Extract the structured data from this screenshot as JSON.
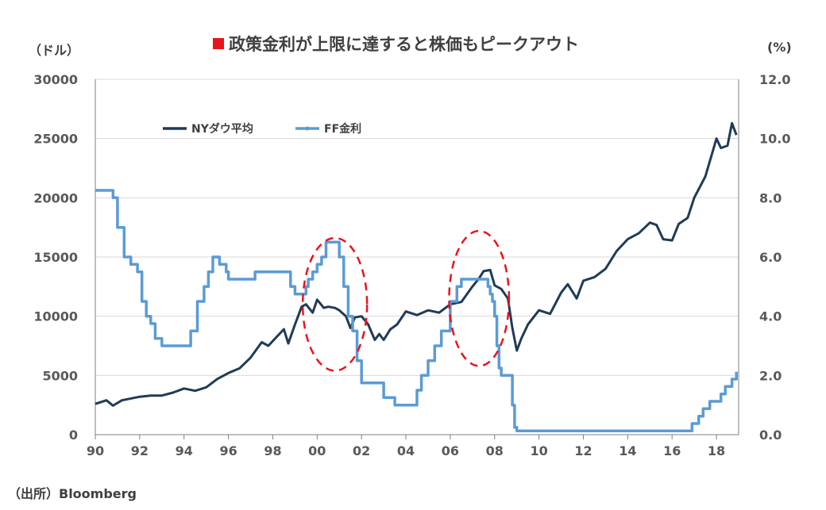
{
  "title": "政策金利が上限に達すると株価もピークアウト",
  "source": "（出所）Bloomberg",
  "colors": {
    "dow": "#1f3b57",
    "ff": "#5b9bd5",
    "highlight": "#e8141e",
    "grid": "#d9d9d9",
    "axis": "#7f7f7f"
  },
  "chart_data": {
    "type": "line",
    "ylabel": "（ドル）",
    "y2label": "(%)",
    "x_ticks": [
      "90",
      "92",
      "94",
      "96",
      "98",
      "00",
      "02",
      "04",
      "06",
      "08",
      "10",
      "12",
      "14",
      "16",
      "18"
    ],
    "ylim": [
      0,
      30000
    ],
    "y_ticks": [
      "0",
      "5000",
      "10000",
      "15000",
      "20000",
      "25000",
      "30000"
    ],
    "y2lim": [
      0,
      12
    ],
    "y2_ticks": [
      "0.0",
      "2.0",
      "4.0",
      "6.0",
      "8.0",
      "10.0",
      "12.0"
    ],
    "legend": [
      "NYダウ平均",
      "FF金利"
    ],
    "grid": "horizontal",
    "series": [
      {
        "name": "NYダウ平均",
        "axis": "left",
        "x": [
          1990.0,
          1990.5,
          1990.8,
          1991.2,
          1992.0,
          1992.5,
          1993.0,
          1993.5,
          1994.0,
          1994.5,
          1995.0,
          1995.5,
          1996.0,
          1996.5,
          1997.0,
          1997.5,
          1997.8,
          1998.0,
          1998.5,
          1998.7,
          1999.0,
          1999.3,
          1999.5,
          1999.8,
          2000.0,
          2000.3,
          2000.5,
          2000.8,
          2001.0,
          2001.3,
          2001.5,
          2001.7,
          2002.0,
          2002.3,
          2002.6,
          2002.8,
          2003.0,
          2003.3,
          2003.6,
          2004.0,
          2004.5,
          2005.0,
          2005.5,
          2006.0,
          2006.5,
          2007.0,
          2007.3,
          2007.5,
          2007.8,
          2008.0,
          2008.3,
          2008.6,
          2008.8,
          2009.0,
          2009.2,
          2009.5,
          2010.0,
          2010.5,
          2011.0,
          2011.3,
          2011.7,
          2012.0,
          2012.5,
          2013.0,
          2013.5,
          2014.0,
          2014.5,
          2015.0,
          2015.3,
          2015.6,
          2016.0,
          2016.3,
          2016.7,
          2017.0,
          2017.5,
          2018.0,
          2018.2,
          2018.5,
          2018.7,
          2018.9
        ],
        "values": [
          2600,
          2900,
          2450,
          2900,
          3200,
          3300,
          3300,
          3550,
          3900,
          3700,
          4000,
          4700,
          5200,
          5600,
          6500,
          7800,
          7500,
          7900,
          8900,
          7700,
          9300,
          10800,
          11000,
          10300,
          11400,
          10700,
          10800,
          10700,
          10500,
          10000,
          9000,
          9900,
          10000,
          9300,
          8000,
          8500,
          8000,
          8900,
          9300,
          10400,
          10100,
          10500,
          10300,
          11000,
          11200,
          12500,
          13200,
          13800,
          13900,
          12600,
          12300,
          11500,
          9000,
          7100,
          8100,
          9300,
          10500,
          10200,
          12000,
          12700,
          11500,
          13000,
          13300,
          14000,
          15500,
          16500,
          17000,
          17900,
          17700,
          16500,
          16400,
          17800,
          18300,
          20000,
          21800,
          25000,
          24200,
          24400,
          26300,
          25300
        ]
      },
      {
        "name": "FF金利",
        "axis": "right",
        "x": [
          1990.0,
          1990.5,
          1990.8,
          1991.0,
          1991.3,
          1991.6,
          1991.9,
          1992.1,
          1992.3,
          1992.5,
          1992.7,
          1993.0,
          1994.0,
          1994.3,
          1994.6,
          1994.9,
          1995.1,
          1995.3,
          1995.6,
          1995.9,
          1996.0,
          1996.6,
          1997.0,
          1997.2,
          1998.0,
          1998.6,
          1998.8,
          1999.0,
          1999.3,
          1999.5,
          1999.6,
          1999.8,
          2000.0,
          2000.2,
          2000.4,
          2000.5,
          2000.6,
          2000.8,
          2001.0,
          2001.2,
          2001.4,
          2001.6,
          2001.8,
          2002.0,
          2002.8,
          2003.0,
          2003.5,
          2004.0,
          2004.5,
          2004.7,
          2005.0,
          2005.3,
          2005.6,
          2006.0,
          2006.3,
          2006.5,
          2006.8,
          2007.0,
          2007.5,
          2007.7,
          2007.8,
          2007.9,
          2008.0,
          2008.1,
          2008.2,
          2008.3,
          2008.5,
          2008.8,
          2008.9,
          2009.0,
          2015.9,
          2016.9,
          2017.2,
          2017.4,
          2017.7,
          2017.9,
          2018.2,
          2018.4,
          2018.7,
          2018.9
        ],
        "values": [
          8.25,
          8.25,
          8.0,
          7.0,
          6.0,
          5.75,
          5.5,
          4.5,
          4.0,
          3.75,
          3.25,
          3.0,
          3.0,
          3.5,
          4.5,
          5.0,
          5.5,
          6.0,
          5.75,
          5.5,
          5.25,
          5.25,
          5.25,
          5.5,
          5.5,
          5.5,
          5.0,
          4.75,
          4.75,
          5.0,
          5.25,
          5.5,
          5.75,
          6.0,
          6.5,
          6.5,
          6.5,
          6.5,
          6.0,
          5.0,
          4.0,
          3.5,
          2.5,
          1.75,
          1.75,
          1.25,
          1.0,
          1.0,
          1.5,
          2.0,
          2.5,
          3.0,
          3.5,
          4.5,
          5.0,
          5.25,
          5.25,
          5.25,
          5.25,
          5.0,
          4.75,
          4.5,
          4.0,
          3.0,
          2.25,
          2.0,
          2.0,
          1.0,
          0.25,
          0.125,
          0.125,
          0.375,
          0.625,
          0.875,
          1.125,
          1.125,
          1.375,
          1.625,
          1.875,
          2.125
        ]
      }
    ],
    "annotations": [
      {
        "type": "ellipse",
        "cx": 2000.8,
        "cy": 11000,
        "rx": 1.45,
        "ry": 5600
      },
      {
        "type": "ellipse",
        "cx": 2007.3,
        "cy": 11500,
        "rx": 1.35,
        "ry": 5700
      }
    ]
  }
}
